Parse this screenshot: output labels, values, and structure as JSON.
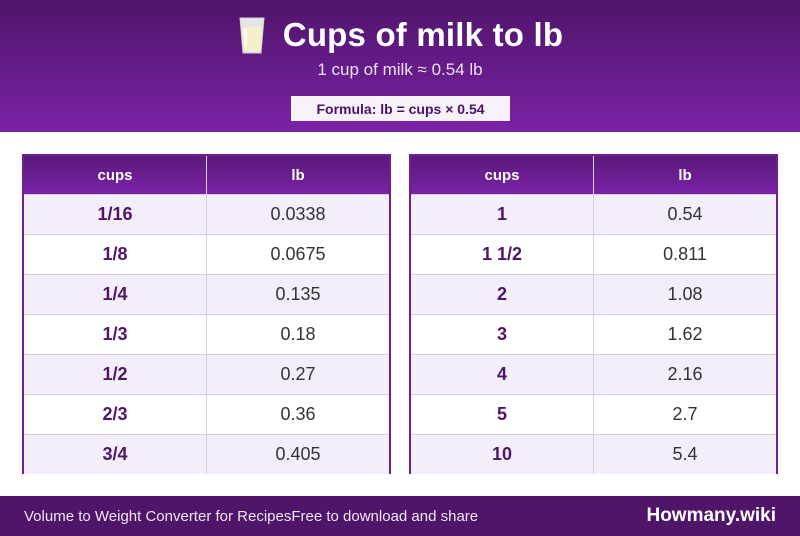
{
  "header": {
    "title": "Cups of milk to lb",
    "subtitle": "1 cup of milk ≈ 0.54 lb",
    "formula": "Formula: lb = cups × 0.54",
    "icon": "milk-glass-icon"
  },
  "tables": [
    {
      "col_cups": "cups",
      "col_lb": "lb",
      "rows": [
        {
          "cups": "1/16",
          "lb": "0.0338"
        },
        {
          "cups": "1/8",
          "lb": "0.0675"
        },
        {
          "cups": "1/4",
          "lb": "0.135"
        },
        {
          "cups": "1/3",
          "lb": "0.18"
        },
        {
          "cups": "1/2",
          "lb": "0.27"
        },
        {
          "cups": "2/3",
          "lb": "0.36"
        },
        {
          "cups": "3/4",
          "lb": "0.405"
        }
      ]
    },
    {
      "col_cups": "cups",
      "col_lb": "lb",
      "rows": [
        {
          "cups": "1",
          "lb": "0.54"
        },
        {
          "cups": "1 1/2",
          "lb": "0.811"
        },
        {
          "cups": "2",
          "lb": "1.08"
        },
        {
          "cups": "3",
          "lb": "1.62"
        },
        {
          "cups": "4",
          "lb": "2.16"
        },
        {
          "cups": "5",
          "lb": "2.7"
        },
        {
          "cups": "10",
          "lb": "5.4"
        }
      ]
    }
  ],
  "footer": {
    "text": "Volume to Weight Converter for RecipesFree to download and share",
    "brand": "Howmany.wiki"
  },
  "colors": {
    "primary": "#4f1569",
    "accent": "#7a22a6",
    "row_alt": "#f4eefa"
  }
}
